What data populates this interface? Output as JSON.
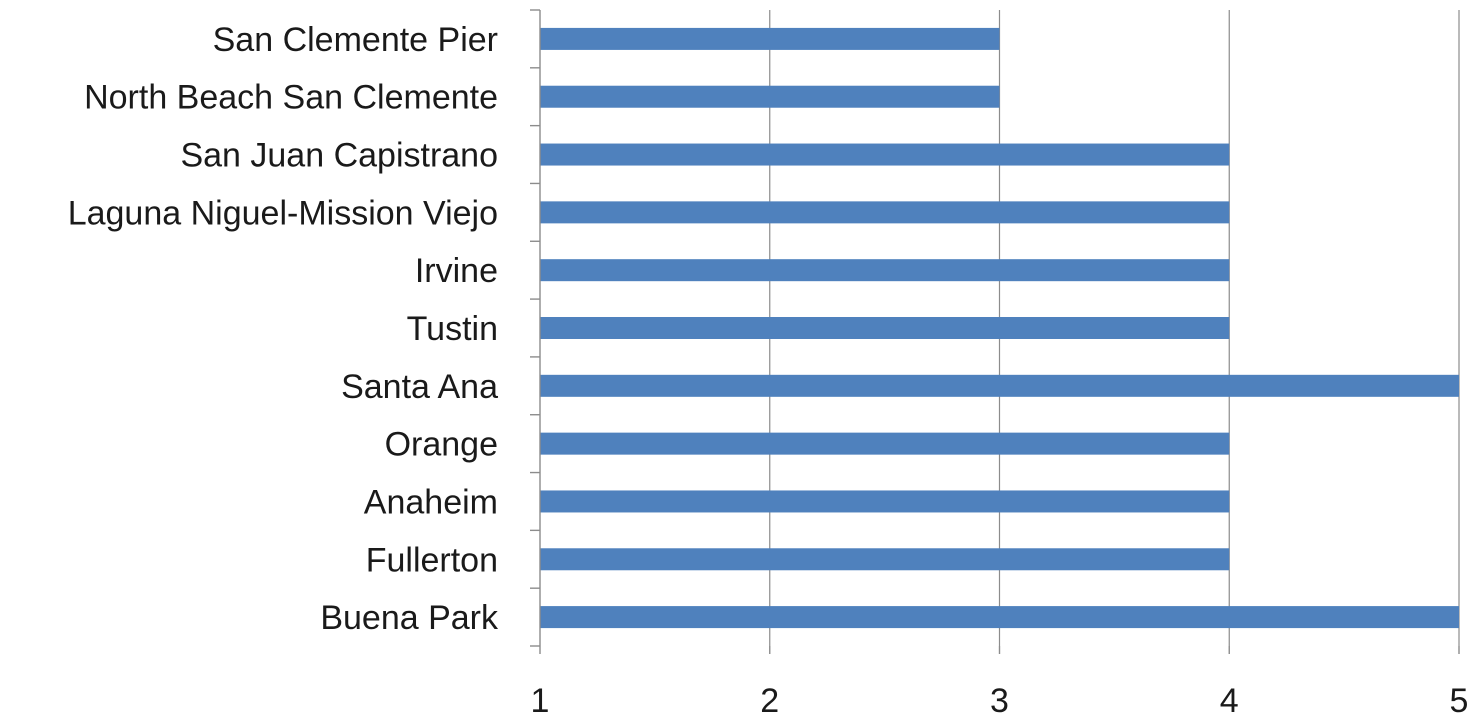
{
  "chart_data": {
    "type": "bar",
    "orientation": "horizontal",
    "categories": [
      "San Clemente Pier",
      "North Beach San Clemente",
      "San Juan Capistrano",
      "Laguna Niguel-Mission Viejo",
      "Irvine",
      "Tustin",
      "Santa Ana",
      "Orange",
      "Anaheim",
      "Fullerton",
      "Buena Park"
    ],
    "values": [
      3,
      3,
      4,
      4,
      4,
      4,
      5,
      4,
      4,
      4,
      5
    ],
    "title": "",
    "xlabel": "",
    "ylabel": "",
    "xlim": [
      1,
      5
    ],
    "x_ticks": [
      "1",
      "2",
      "3",
      "4",
      "5"
    ],
    "grid": "vertical",
    "legend": "none",
    "colors": {
      "bar": "#4f81bd",
      "grid": "#8c8c8c",
      "text": "#1a1a1a"
    }
  }
}
